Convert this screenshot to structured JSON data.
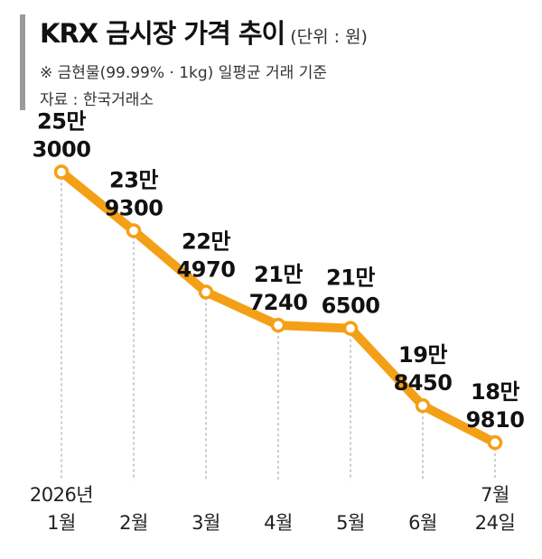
{
  "header": {
    "title": "KRX 금시장 가격 추이",
    "unit": "(단위 : 원)",
    "note": "※ 금현물(99.99% · 1kg) 일평균 거래 기준",
    "source": "자료 : 한국거래소"
  },
  "colors": {
    "line": "#f4a016",
    "marker_fill": "#ffffff",
    "dashed": "#9a9a9a",
    "header_bar": "#9a9a9a"
  },
  "chart_data": {
    "type": "line",
    "title": "KRX 금시장 가격 추이",
    "unit": "원",
    "categories": [
      "1월",
      "2월",
      "3월",
      "4월",
      "5월",
      "6월",
      "7월 24일"
    ],
    "values": [
      253000,
      239300,
      224970,
      217240,
      216500,
      198450,
      189810
    ],
    "labels": [
      [
        "25만",
        "3000"
      ],
      [
        "23만",
        "9300"
      ],
      [
        "22만",
        "4970"
      ],
      [
        "21만",
        "7240"
      ],
      [
        "21만",
        "6500"
      ],
      [
        "19만",
        "8450"
      ],
      [
        "18만",
        "9810"
      ]
    ],
    "x_labels": [
      [
        "2026년",
        "1월"
      ],
      [
        "",
        "2월"
      ],
      [
        "",
        "3월"
      ],
      [
        "",
        "4월"
      ],
      [
        "",
        "5월"
      ],
      [
        "",
        "6월"
      ],
      [
        "7월",
        "24일"
      ]
    ],
    "ylim": [
      185000,
      255000
    ],
    "grid": false,
    "legend": "none"
  }
}
